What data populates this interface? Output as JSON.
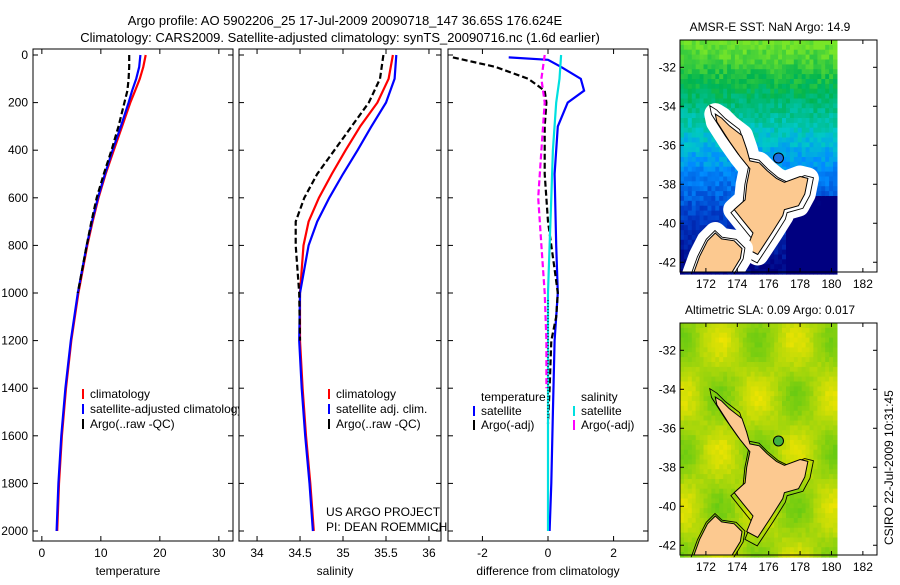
{
  "title_line1": "Argo profile: AO 5902206_25 17-Jul-2009 20090718_147 36.65S 176.624E",
  "title_line2": "Climatology: CARS2009. Satellite-adjusted climatology: synTS_20090716.nc (1.6d earlier)",
  "credit": "CSIRO 22-Jul-2009 10:31:45",
  "project_line1": "US ARGO PROJECT",
  "project_line2": "PI: DEAN ROEMMICH",
  "chart_data": [
    {
      "type": "line",
      "id": "temperature",
      "xlabel": "temperature",
      "ylabel": "",
      "xlim": [
        -1.5,
        32.4
      ],
      "ylim": [
        2050,
        0
      ],
      "xticks": [
        0,
        10,
        20,
        30
      ],
      "yticks": [
        0,
        200,
        400,
        600,
        800,
        1000,
        1200,
        1400,
        1600,
        1800,
        2000
      ],
      "legend": [
        "climatology",
        "satellite-adjusted climatology",
        "Argo(..raw -QC)"
      ],
      "series": [
        {
          "name": "climatology",
          "color": "#ff0000",
          "dash": false,
          "depth": [
            0,
            50,
            100,
            150,
            200,
            300,
            400,
            500,
            600,
            700,
            800,
            1000,
            1200,
            1400,
            1600,
            1800,
            2000
          ],
          "values": [
            17.6,
            17.2,
            16.6,
            15.8,
            15.0,
            13.6,
            12.2,
            10.8,
            9.6,
            8.6,
            7.7,
            6.2,
            5.0,
            4.1,
            3.4,
            2.9,
            2.6
          ]
        },
        {
          "name": "satellite-adjusted climatology",
          "color": "#0000ff",
          "dash": false,
          "depth": [
            0,
            50,
            100,
            150,
            200,
            300,
            400,
            500,
            600,
            700,
            800,
            1000,
            1200,
            1400,
            1600,
            1800,
            2000
          ],
          "values": [
            16.7,
            16.5,
            16.0,
            15.3,
            14.7,
            13.4,
            12.0,
            10.7,
            9.5,
            8.5,
            7.6,
            6.1,
            4.9,
            4.0,
            3.3,
            2.8,
            2.5
          ]
        },
        {
          "name": "Argo(..raw -QC)",
          "color": "#000000",
          "dash": true,
          "depth": [
            0,
            50,
            100,
            150,
            200,
            300,
            400,
            500,
            600,
            700,
            800,
            1000
          ],
          "values": [
            14.8,
            14.8,
            14.7,
            14.5,
            14.0,
            13.0,
            11.8,
            10.5,
            9.3,
            8.4,
            7.6,
            6.1
          ]
        }
      ]
    },
    {
      "type": "line",
      "id": "salinity",
      "xlabel": "salinity",
      "xlim": [
        33.79,
        36.14
      ],
      "ylim": [
        2050,
        0
      ],
      "xticks": [
        34,
        34.5,
        35,
        35.5,
        36
      ],
      "legend": [
        "climatology",
        "satellite adj. clim.",
        "Argo(..raw -QC)"
      ],
      "series": [
        {
          "name": "climatology",
          "color": "#ff0000",
          "dash": false,
          "depth": [
            0,
            100,
            200,
            300,
            400,
            500,
            600,
            700,
            800,
            1000,
            1200,
            1400,
            1600,
            1800,
            2000
          ],
          "values": [
            35.58,
            35.53,
            35.4,
            35.2,
            35.03,
            34.87,
            34.72,
            34.6,
            34.54,
            34.5,
            34.5,
            34.53,
            34.57,
            34.62,
            34.66
          ]
        },
        {
          "name": "satellite adj. clim.",
          "color": "#0000ff",
          "dash": false,
          "depth": [
            0,
            100,
            200,
            300,
            400,
            500,
            600,
            700,
            800,
            1000,
            1200,
            1400,
            1600,
            1800,
            2000
          ],
          "values": [
            35.62,
            35.6,
            35.5,
            35.33,
            35.17,
            35.0,
            34.84,
            34.7,
            34.6,
            34.5,
            34.49,
            34.52,
            34.56,
            34.61,
            34.65
          ]
        },
        {
          "name": "Argo(..raw -QC)",
          "color": "#000000",
          "dash": true,
          "depth": [
            0,
            100,
            200,
            300,
            400,
            500,
            600,
            700,
            800,
            1000,
            1200
          ],
          "values": [
            35.47,
            35.43,
            35.3,
            35.1,
            34.9,
            34.7,
            34.55,
            34.45,
            34.45,
            34.49,
            34.5
          ]
        }
      ]
    },
    {
      "type": "line",
      "id": "difference",
      "xlabel": "difference from climatology",
      "xlim": [
        -3.05,
        3.05
      ],
      "ylim": [
        2050,
        0
      ],
      "xticks": [
        -2,
        0,
        2
      ],
      "legend_headers": [
        "temperature",
        "salinity"
      ],
      "legend": [
        "satellite",
        "Argo(-adj)",
        "satellite",
        "Argo(-adj)"
      ],
      "series": [
        {
          "name": "temperature satellite",
          "color": "#0000ff",
          "dash": false,
          "depth": [
            10,
            20,
            50,
            100,
            150,
            200,
            300,
            500,
            800,
            1000,
            1200,
            1500,
            1800,
            2000
          ],
          "values": [
            -1.2,
            0.0,
            0.4,
            1.0,
            1.1,
            0.6,
            0.3,
            0.2,
            0.25,
            0.3,
            0.2,
            0.15,
            0.1,
            0.05
          ]
        },
        {
          "name": "temperature Argo(-adj)",
          "color": "#000000",
          "dash": true,
          "depth": [
            10,
            50,
            100,
            150,
            200,
            300,
            500,
            700,
            900,
            1000,
            1100,
            1200,
            1400,
            1550
          ],
          "values": [
            -2.9,
            -1.6,
            -0.6,
            -0.1,
            -0.05,
            -0.1,
            -0.1,
            0.0,
            0.2,
            0.3,
            0.25,
            0.1,
            0.05,
            0.0
          ]
        },
        {
          "name": "salinity satellite",
          "color": "#00e0e0",
          "dash": false,
          "depth": [
            0,
            100,
            200,
            400,
            600,
            800,
            1000,
            1400,
            1800,
            2000
          ],
          "values": [
            0.4,
            0.35,
            0.25,
            0.15,
            0.1,
            0.05,
            0.0,
            0.0,
            0.0,
            0.0
          ]
        },
        {
          "name": "salinity Argo(-adj)",
          "color": "#ff00ff",
          "dash": true,
          "depth": [
            0,
            100,
            200,
            400,
            600,
            800,
            1000,
            1200,
            1400
          ],
          "values": [
            -0.1,
            -0.2,
            -0.1,
            -0.2,
            -0.3,
            -0.2,
            -0.1,
            -0.05,
            -0.05
          ]
        }
      ]
    },
    {
      "type": "heatmap",
      "id": "sst-map",
      "title": "AMSR-E SST: NaN Argo: 14.9",
      "xlim": [
        170.35,
        182.9
      ],
      "ylim": [
        -42.5,
        -30.6
      ],
      "xticks": [
        172,
        174,
        176,
        178,
        180,
        182
      ],
      "yticks": [
        -32,
        -34,
        -36,
        -38,
        -40,
        -42
      ],
      "float_position": {
        "lon": 176.624,
        "lat": -36.65
      }
    },
    {
      "type": "heatmap",
      "id": "sla-map",
      "title": "Altimetric SLA: 0.09 Argo: 0.017",
      "xlim": [
        170.35,
        182.9
      ],
      "ylim": [
        -42.5,
        -30.6
      ],
      "xticks": [
        172,
        174,
        176,
        178,
        180,
        182
      ],
      "yticks": [
        -32,
        -34,
        -36,
        -38,
        -40,
        -42
      ],
      "float_position": {
        "lon": 176.624,
        "lat": -36.65
      }
    }
  ]
}
